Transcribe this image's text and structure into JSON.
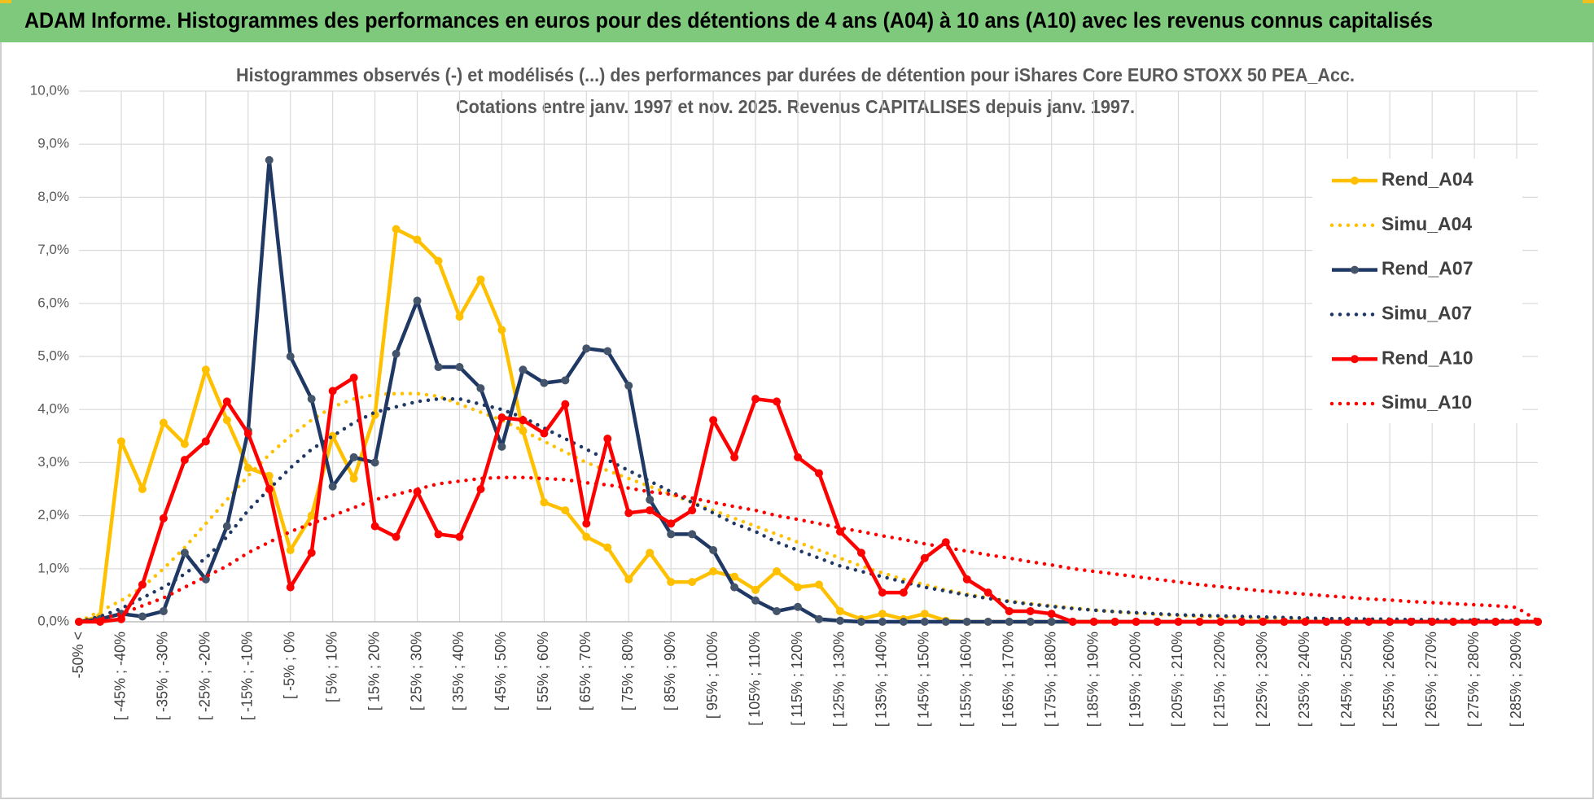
{
  "header": {
    "title": "ADAM Informe. Histogrammes des performances en euros pour des détentions de 4 ans (A04) à 10 ans (A10) avec les revenus connus capitalisés"
  },
  "chart_data": {
    "type": "line",
    "title": "Histogrammes observés (-) et modélisés (...) des performances par durées de détention pour iShares Core EURO STOXX 50 PEA_Acc.",
    "subtitle": "Cotations entre janv. 1997 et nov. 2025. Revenus CAPITALISES depuis janv. 1997.",
    "categories": [
      "-50% <",
      null,
      "[ -45% ; -40%",
      null,
      "[ -35% ; -30%",
      null,
      "[ -25% ; -20%",
      null,
      "[ -15% ; -10%",
      null,
      "[ -5% ; 0%",
      null,
      "[ 5% ; 10%",
      null,
      "[ 15% ; 20%",
      null,
      "[ 25% ; 30%",
      null,
      "[ 35% ; 40%",
      null,
      "[ 45% ; 50%",
      null,
      "[ 55% ; 60%",
      null,
      "[ 65% ; 70%",
      null,
      "[ 75% ; 80%",
      null,
      "[ 85% ; 90%",
      null,
      "[ 95% ; 100%",
      null,
      "[ 105% ; 110%",
      null,
      "[ 115% ; 120%",
      null,
      "[ 125% ; 130%",
      null,
      "[ 135% ; 140%",
      null,
      "[ 145% ; 150%",
      null,
      "[ 155% ; 160%",
      null,
      "[ 165% ; 170%",
      null,
      "[ 175% ; 180%",
      null,
      "[ 185% ; 190%",
      null,
      "[ 195% ; 200%",
      null,
      "[ 205% ; 210%",
      null,
      "[ 215% ; 220%",
      null,
      "[ 225% ; 230%",
      null,
      "[ 235% ; 240%",
      null,
      "[ 245% ; 250%",
      null,
      "[ 255% ; 260%",
      null,
      "[ 265% ; 270%",
      null,
      "[ 275% ; 280%",
      null,
      "[ 285% ; 290%",
      null
    ],
    "ylim": [
      0,
      10
    ],
    "yticks": [
      {
        "value": 0,
        "label": "0,0%"
      },
      {
        "value": 1,
        "label": "1,0%"
      },
      {
        "value": 2,
        "label": "2,0%"
      },
      {
        "value": 3,
        "label": "3,0%"
      },
      {
        "value": 4,
        "label": "4,0%"
      },
      {
        "value": 5,
        "label": "5,0%"
      },
      {
        "value": 6,
        "label": "6,0%"
      },
      {
        "value": 7,
        "label": "7,0%"
      },
      {
        "value": 8,
        "label": "8,0%"
      },
      {
        "value": 9,
        "label": "9,0%"
      },
      {
        "value": 10,
        "label": "10,0%"
      }
    ],
    "grid": true,
    "legend": "right",
    "series": [
      {
        "name": "Rend_A04",
        "color": "#FFC000",
        "style": "solid",
        "marker": "#FFC000",
        "values": [
          0,
          0.1,
          3.4,
          2.5,
          3.75,
          3.35,
          4.75,
          3.8,
          2.9,
          2.75,
          1.35,
          2.0,
          3.5,
          2.7,
          3.9,
          7.4,
          7.2,
          6.8,
          5.75,
          6.45,
          5.5,
          3.6,
          2.25,
          2.1,
          1.6,
          1.4,
          0.8,
          1.3,
          0.75,
          0.75,
          0.95,
          0.85,
          0.6,
          0.95,
          0.65,
          0.7,
          0.2,
          0.05,
          0.15,
          0.05,
          0.15,
          0.02,
          0,
          0,
          0,
          0,
          0,
          0,
          0,
          0,
          0,
          0,
          0,
          0,
          0,
          0,
          0,
          0,
          0,
          0,
          0,
          0,
          0,
          0,
          0,
          0,
          0,
          0,
          0,
          0
        ]
      },
      {
        "name": "Simu_A04",
        "color": "#FFC000",
        "style": "dotted",
        "values": [
          0,
          0.2,
          0.4,
          0.65,
          1.0,
          1.4,
          1.85,
          2.3,
          2.75,
          3.15,
          3.5,
          3.8,
          4.05,
          4.2,
          4.28,
          4.3,
          4.3,
          4.25,
          4.1,
          3.95,
          3.8,
          3.6,
          3.4,
          3.2,
          3.0,
          2.85,
          2.7,
          2.55,
          2.4,
          2.25,
          2.1,
          1.95,
          1.8,
          1.65,
          1.5,
          1.35,
          1.2,
          1.05,
          0.92,
          0.8,
          0.7,
          0.6,
          0.52,
          0.45,
          0.39,
          0.34,
          0.3,
          0.26,
          0.22,
          0.19,
          0.16,
          0.14,
          0.12,
          0.1,
          0.09,
          0.08,
          0.07,
          0.06,
          0.05,
          0.04,
          0.04,
          0.03,
          0.03,
          0.02,
          0.02,
          0.02,
          0.01,
          0.01,
          0.01,
          0
        ]
      },
      {
        "name": "Rend_A07",
        "color": "#1F3864",
        "style": "solid",
        "marker": "#44546A",
        "values": [
          0,
          0.05,
          0.15,
          0.1,
          0.2,
          1.3,
          0.8,
          1.8,
          3.6,
          8.7,
          5.0,
          4.2,
          2.55,
          3.1,
          3.0,
          5.05,
          6.05,
          4.8,
          4.8,
          4.4,
          3.3,
          4.75,
          4.5,
          4.55,
          5.15,
          5.1,
          4.45,
          2.3,
          1.65,
          1.65,
          1.35,
          0.65,
          0.4,
          0.2,
          0.28,
          0.05,
          0.02,
          0,
          0,
          0,
          0,
          0,
          0,
          0,
          0,
          0,
          0,
          0,
          0,
          0,
          0,
          0,
          0,
          0,
          0,
          0,
          0,
          0,
          0,
          0,
          0,
          0,
          0,
          0,
          0,
          0,
          0,
          0,
          0,
          0
        ]
      },
      {
        "name": "Simu_A07",
        "color": "#1F3864",
        "style": "dotted",
        "values": [
          0,
          0.1,
          0.25,
          0.45,
          0.65,
          0.9,
          1.2,
          1.6,
          2.1,
          2.5,
          2.9,
          3.25,
          3.5,
          3.75,
          3.95,
          4.05,
          4.15,
          4.2,
          4.2,
          4.1,
          4.0,
          3.85,
          3.65,
          3.45,
          3.25,
          3.05,
          2.85,
          2.65,
          2.45,
          2.25,
          2.05,
          1.85,
          1.7,
          1.5,
          1.35,
          1.2,
          1.05,
          0.95,
          0.85,
          0.75,
          0.65,
          0.58,
          0.5,
          0.44,
          0.38,
          0.33,
          0.29,
          0.25,
          0.22,
          0.19,
          0.17,
          0.15,
          0.13,
          0.12,
          0.11,
          0.1,
          0.09,
          0.08,
          0.07,
          0.06,
          0.06,
          0.05,
          0.05,
          0.04,
          0.04,
          0.03,
          0.03,
          0.03,
          0.02,
          0
        ]
      },
      {
        "name": "Rend_A10",
        "color": "#FF0000",
        "style": "solid",
        "marker": "#FF0000",
        "values": [
          0,
          0,
          0.05,
          0.7,
          1.95,
          3.05,
          3.4,
          4.15,
          3.55,
          2.5,
          0.65,
          1.3,
          4.35,
          4.6,
          1.8,
          1.6,
          2.45,
          1.65,
          1.6,
          2.5,
          3.85,
          3.8,
          3.55,
          4.1,
          1.85,
          3.45,
          2.05,
          2.1,
          1.85,
          2.1,
          3.8,
          3.1,
          4.2,
          4.15,
          3.1,
          2.8,
          1.7,
          1.3,
          0.55,
          0.55,
          1.2,
          1.5,
          0.8,
          0.55,
          0.2,
          0.2,
          0.15,
          0,
          0,
          0,
          0,
          0,
          0,
          0,
          0,
          0,
          0,
          0,
          0,
          0,
          0,
          0,
          0,
          0,
          0,
          0,
          0,
          0,
          0,
          0
        ]
      },
      {
        "name": "Simu_A10",
        "color": "#FF0000",
        "style": "dotted",
        "values": [
          0,
          0.05,
          0.15,
          0.3,
          0.45,
          0.65,
          0.85,
          1.05,
          1.3,
          1.5,
          1.7,
          1.85,
          2.0,
          2.15,
          2.3,
          2.4,
          2.5,
          2.6,
          2.65,
          2.7,
          2.72,
          2.72,
          2.7,
          2.68,
          2.62,
          2.58,
          2.52,
          2.45,
          2.4,
          2.33,
          2.25,
          2.17,
          2.1,
          2.0,
          1.93,
          1.85,
          1.77,
          1.7,
          1.62,
          1.55,
          1.47,
          1.4,
          1.33,
          1.26,
          1.2,
          1.13,
          1.07,
          1.0,
          0.95,
          0.9,
          0.85,
          0.8,
          0.75,
          0.7,
          0.66,
          0.62,
          0.58,
          0.55,
          0.52,
          0.49,
          0.46,
          0.43,
          0.41,
          0.38,
          0.36,
          0.34,
          0.32,
          0.3,
          0.27,
          0.02
        ]
      }
    ]
  }
}
